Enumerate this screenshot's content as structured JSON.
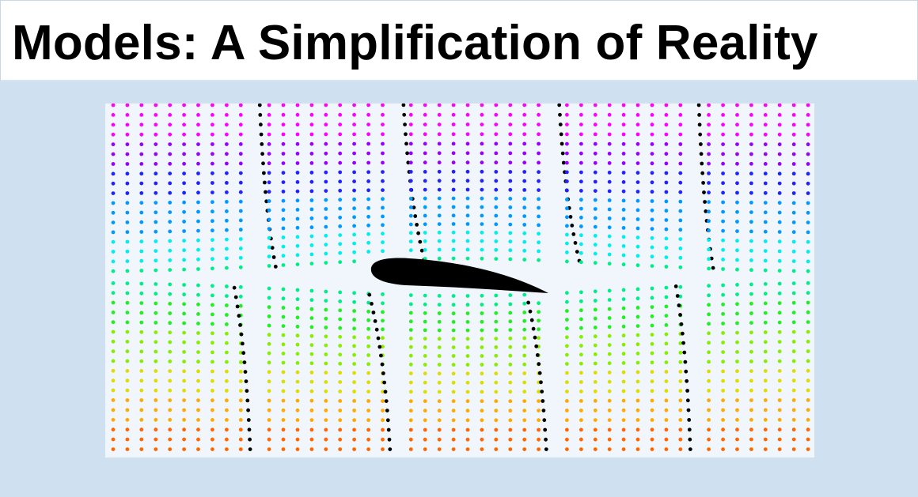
{
  "slide": {
    "title": "Models: A Simplification of Reality"
  },
  "figure": {
    "description_icon": "airfoil-flow-field-icon",
    "airfoil_color": "#000000",
    "streakline_color": "#000000",
    "background_color": "#f1f6fc",
    "color_bands": [
      "#ff00ff",
      "#9900ff",
      "#2222ff",
      "#0099ff",
      "#00eeee",
      "#00ee88",
      "#22ee22",
      "#88ee00",
      "#dddd00",
      "#ffaa00",
      "#ff6600"
    ]
  }
}
